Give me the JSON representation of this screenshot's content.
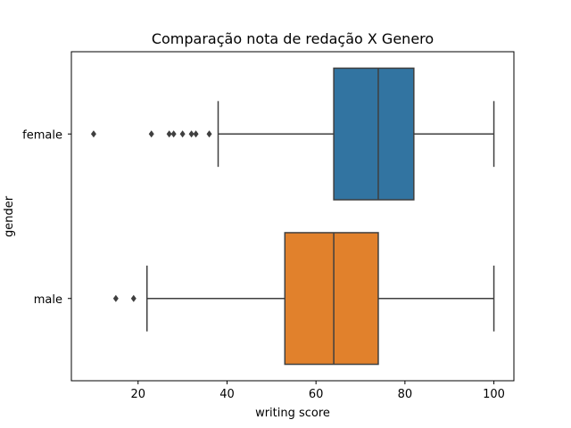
{
  "chart_data": {
    "type": "boxplot",
    "orientation": "horizontal",
    "title": "Comparação nota de redação X Genero",
    "xlabel": "writing score",
    "ylabel": "gender",
    "xlim": [
      5,
      104.5
    ],
    "xticks": [
      20,
      40,
      60,
      80,
      100
    ],
    "grid": false,
    "categories": [
      "female",
      "male"
    ],
    "boxes": [
      {
        "name": "female",
        "whisker_low": 38,
        "q1": 64,
        "median": 74,
        "q3": 82,
        "whisker_high": 100,
        "outliers": [
          10,
          23,
          27,
          28,
          30,
          32,
          33,
          36
        ],
        "color": "#3274a1"
      },
      {
        "name": "male",
        "whisker_low": 22,
        "q1": 53,
        "median": 64,
        "q3": 74,
        "whisker_high": 100,
        "outliers": [
          15,
          19
        ],
        "color": "#e1812c"
      }
    ],
    "line_color": "#3f3f3f"
  }
}
